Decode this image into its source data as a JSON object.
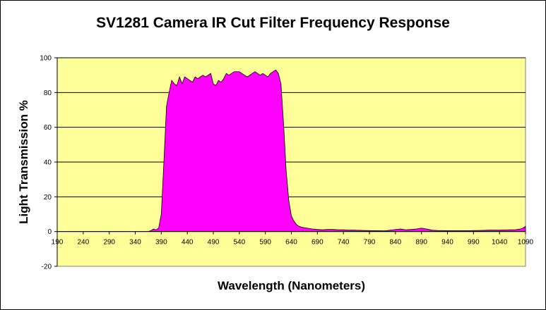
{
  "chart_data": {
    "type": "area",
    "title": "SV1281 Camera IR Cut Filter Frequency Response",
    "xlabel": "Wavelength (Nanometers)",
    "ylabel": "Light Transmission %",
    "xlim": [
      190,
      1090
    ],
    "ylim": [
      -20,
      100
    ],
    "x_ticks": [
      190,
      240,
      290,
      340,
      390,
      440,
      490,
      540,
      590,
      640,
      690,
      740,
      790,
      840,
      890,
      940,
      990,
      1040,
      1090
    ],
    "y_ticks": [
      -20,
      0,
      20,
      40,
      60,
      80,
      100
    ],
    "grid": "horizontal",
    "legend": "none",
    "colors": {
      "plot_background": "#FFFF99",
      "fill": "#FF00FF",
      "outline": "#000000"
    },
    "series": [
      {
        "x": [
          190,
          340,
          365,
          370,
          375,
          380,
          385,
          390,
          395,
          400,
          405,
          410,
          415,
          420,
          425,
          430,
          435,
          440,
          445,
          450,
          455,
          460,
          465,
          470,
          475,
          480,
          485,
          490,
          495,
          500,
          505,
          510,
          515,
          520,
          525,
          530,
          535,
          540,
          545,
          550,
          555,
          560,
          565,
          570,
          575,
          580,
          585,
          590,
          595,
          600,
          605,
          610,
          615,
          620,
          625,
          630,
          635,
          640,
          645,
          650,
          655,
          660,
          670,
          680,
          690,
          700,
          710,
          720,
          730,
          740,
          750,
          760,
          780,
          800,
          820,
          840,
          850,
          860,
          870,
          880,
          890,
          900,
          910,
          920,
          940,
          960,
          980,
          1000,
          1020,
          1040,
          1060,
          1070,
          1080,
          1085,
          1090
        ],
        "y": [
          0,
          0,
          0,
          0.5,
          1.5,
          1,
          2,
          10,
          40,
          72,
          80,
          87,
          85,
          84,
          89,
          85,
          89,
          88,
          87,
          86,
          89,
          88,
          89,
          90,
          89,
          90,
          91,
          85,
          84,
          87,
          86,
          88,
          91,
          90,
          91,
          92,
          92,
          92,
          91,
          90,
          89,
          90,
          91,
          92,
          91,
          90,
          91,
          90,
          89,
          91,
          92,
          93,
          91,
          85,
          62,
          35,
          18,
          9,
          6,
          4,
          3,
          2.5,
          2,
          1.5,
          1.2,
          1,
          1.2,
          1.2,
          1,
          1,
          0.8,
          0.8,
          0.6,
          0.5,
          0.4,
          1.2,
          1.5,
          1,
          1.2,
          1.5,
          2,
          1.5,
          0.8,
          0.6,
          0.5,
          0.5,
          0.5,
          0.6,
          0.8,
          0.8,
          1,
          1,
          1.5,
          2,
          3
        ]
      }
    ]
  }
}
